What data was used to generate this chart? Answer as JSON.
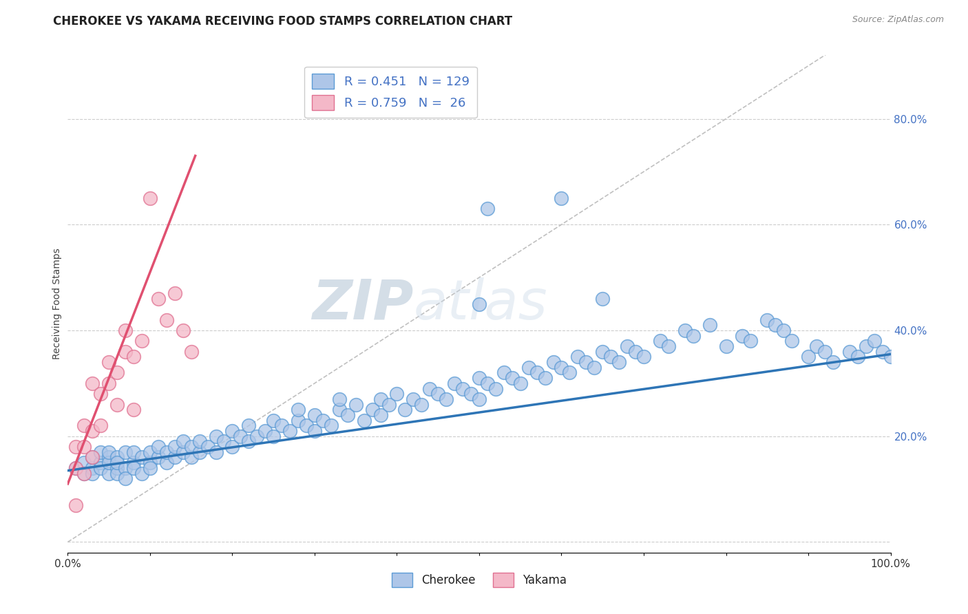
{
  "title": "CHEROKEE VS YAKAMA RECEIVING FOOD STAMPS CORRELATION CHART",
  "source": "Source: ZipAtlas.com",
  "ylabel": "Receiving Food Stamps",
  "xlim": [
    0.0,
    1.0
  ],
  "ylim": [
    -0.02,
    0.92
  ],
  "xticks": [
    0.0,
    0.1,
    0.2,
    0.3,
    0.4,
    0.5,
    0.6,
    0.7,
    0.8,
    0.9,
    1.0
  ],
  "yticks": [
    0.0,
    0.2,
    0.4,
    0.6,
    0.8
  ],
  "cherokee_color": "#aec6e8",
  "yakama_color": "#f4b8c8",
  "cherokee_edge": "#5b9bd5",
  "yakama_edge": "#e07090",
  "trend_cherokee_color": "#2e75b6",
  "trend_yakama_color": "#e05070",
  "R_cherokee": 0.451,
  "N_cherokee": 129,
  "R_yakama": 0.759,
  "N_yakama": 26,
  "background_color": "#ffffff",
  "grid_color": "#cccccc",
  "title_color": "#222222",
  "watermark_color": "#d0dce8",
  "axis_label_color": "#4472c4",
  "cherokee_x": [
    0.01,
    0.02,
    0.02,
    0.03,
    0.03,
    0.03,
    0.04,
    0.04,
    0.04,
    0.05,
    0.05,
    0.05,
    0.05,
    0.06,
    0.06,
    0.06,
    0.06,
    0.07,
    0.07,
    0.07,
    0.08,
    0.08,
    0.08,
    0.09,
    0.09,
    0.1,
    0.1,
    0.1,
    0.11,
    0.11,
    0.12,
    0.12,
    0.13,
    0.13,
    0.14,
    0.14,
    0.15,
    0.15,
    0.16,
    0.16,
    0.17,
    0.18,
    0.18,
    0.19,
    0.2,
    0.2,
    0.21,
    0.22,
    0.22,
    0.23,
    0.24,
    0.25,
    0.25,
    0.26,
    0.27,
    0.28,
    0.28,
    0.29,
    0.3,
    0.3,
    0.31,
    0.32,
    0.33,
    0.33,
    0.34,
    0.35,
    0.36,
    0.37,
    0.38,
    0.38,
    0.39,
    0.4,
    0.41,
    0.42,
    0.43,
    0.44,
    0.45,
    0.46,
    0.47,
    0.48,
    0.49,
    0.5,
    0.5,
    0.51,
    0.52,
    0.53,
    0.54,
    0.55,
    0.56,
    0.57,
    0.58,
    0.59,
    0.6,
    0.61,
    0.62,
    0.63,
    0.64,
    0.65,
    0.66,
    0.67,
    0.68,
    0.69,
    0.7,
    0.72,
    0.73,
    0.75,
    0.76,
    0.78,
    0.8,
    0.82,
    0.83,
    0.85,
    0.86,
    0.87,
    0.88,
    0.9,
    0.91,
    0.92,
    0.93,
    0.95,
    0.96,
    0.97,
    0.98,
    0.99,
    1.0,
    0.5,
    0.51,
    0.6,
    0.65
  ],
  "cherokee_y": [
    0.14,
    0.13,
    0.15,
    0.14,
    0.16,
    0.13,
    0.15,
    0.17,
    0.14,
    0.16,
    0.13,
    0.15,
    0.17,
    0.14,
    0.16,
    0.13,
    0.15,
    0.14,
    0.17,
    0.12,
    0.15,
    0.17,
    0.14,
    0.16,
    0.13,
    0.15,
    0.17,
    0.14,
    0.16,
    0.18,
    0.15,
    0.17,
    0.16,
    0.18,
    0.17,
    0.19,
    0.16,
    0.18,
    0.17,
    0.19,
    0.18,
    0.17,
    0.2,
    0.19,
    0.18,
    0.21,
    0.2,
    0.19,
    0.22,
    0.2,
    0.21,
    0.2,
    0.23,
    0.22,
    0.21,
    0.23,
    0.25,
    0.22,
    0.21,
    0.24,
    0.23,
    0.22,
    0.25,
    0.27,
    0.24,
    0.26,
    0.23,
    0.25,
    0.24,
    0.27,
    0.26,
    0.28,
    0.25,
    0.27,
    0.26,
    0.29,
    0.28,
    0.27,
    0.3,
    0.29,
    0.28,
    0.31,
    0.27,
    0.3,
    0.29,
    0.32,
    0.31,
    0.3,
    0.33,
    0.32,
    0.31,
    0.34,
    0.33,
    0.32,
    0.35,
    0.34,
    0.33,
    0.36,
    0.35,
    0.34,
    0.37,
    0.36,
    0.35,
    0.38,
    0.37,
    0.4,
    0.39,
    0.41,
    0.37,
    0.39,
    0.38,
    0.42,
    0.41,
    0.4,
    0.38,
    0.35,
    0.37,
    0.36,
    0.34,
    0.36,
    0.35,
    0.37,
    0.38,
    0.36,
    0.35,
    0.45,
    0.63,
    0.65,
    0.46
  ],
  "yakama_x": [
    0.01,
    0.01,
    0.02,
    0.02,
    0.03,
    0.03,
    0.04,
    0.04,
    0.05,
    0.05,
    0.06,
    0.07,
    0.07,
    0.08,
    0.09,
    0.1,
    0.11,
    0.12,
    0.13,
    0.14,
    0.15,
    0.01,
    0.02,
    0.03,
    0.06,
    0.08
  ],
  "yakama_y": [
    0.14,
    0.18,
    0.18,
    0.22,
    0.21,
    0.3,
    0.22,
    0.28,
    0.3,
    0.34,
    0.32,
    0.36,
    0.4,
    0.35,
    0.38,
    0.65,
    0.46,
    0.42,
    0.47,
    0.4,
    0.36,
    0.07,
    0.13,
    0.16,
    0.26,
    0.25
  ],
  "cherokee_trend_x": [
    0.0,
    1.0
  ],
  "cherokee_trend_y": [
    0.135,
    0.355
  ],
  "yakama_trend_x": [
    0.0,
    0.155
  ],
  "yakama_trend_y": [
    0.11,
    0.73
  ]
}
